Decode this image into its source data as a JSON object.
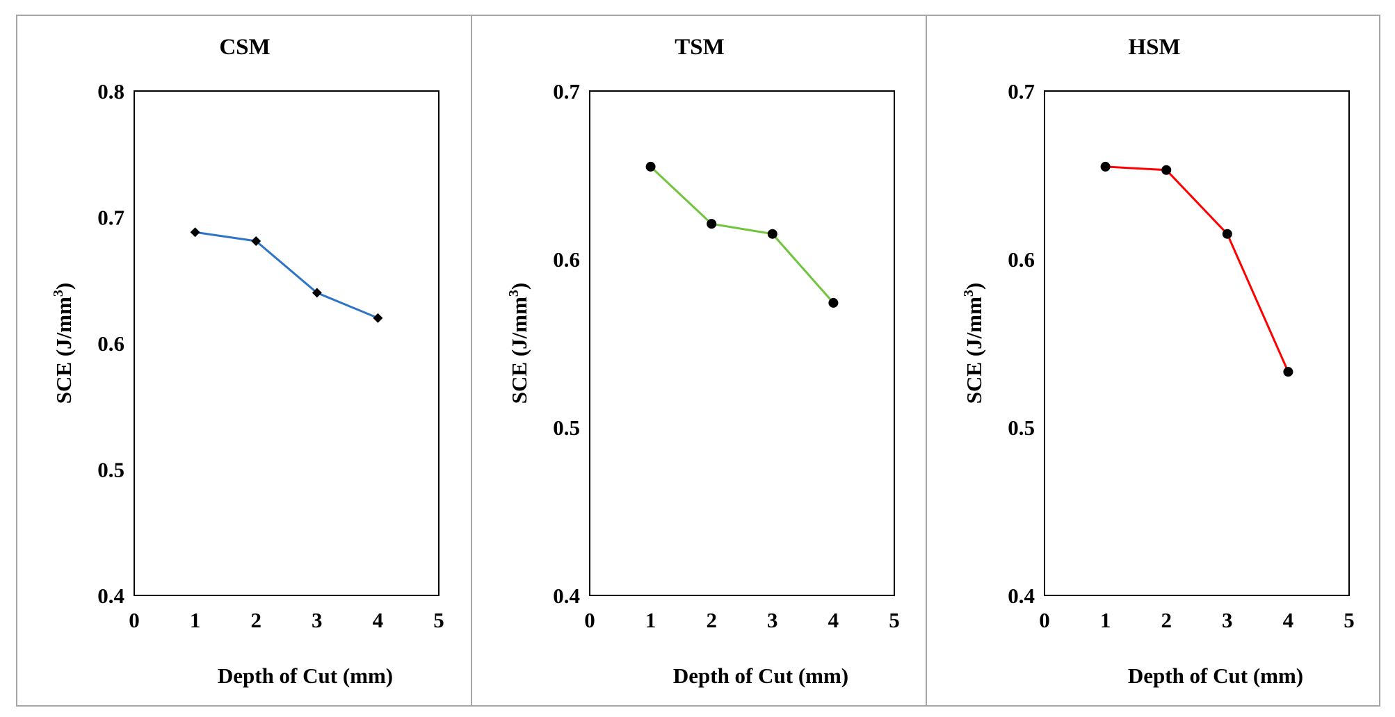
{
  "chart_data": [
    {
      "type": "line",
      "title": "CSM",
      "xlabel": "Depth of Cut (mm)",
      "ylabel": "SCE (J/mm",
      "ylabel_sup": "3",
      "ylabel_close": ")",
      "x": [
        1,
        2,
        3,
        4
      ],
      "values": [
        0.688,
        0.681,
        0.64,
        0.62
      ],
      "xlim": [
        0,
        5
      ],
      "ylim": [
        0.4,
        0.8
      ],
      "xticks": [
        "0",
        "1",
        "2",
        "3",
        "4",
        "5"
      ],
      "yticks": [
        "0.4",
        "0.5",
        "0.6",
        "0.7",
        "0.8"
      ],
      "line_color": "#2e75c6",
      "marker": "diamond",
      "grid": false
    },
    {
      "type": "line",
      "title": "TSM",
      "xlabel": "Depth of Cut (mm)",
      "ylabel": "SCE (J/mm",
      "ylabel_sup": "3",
      "ylabel_close": ")",
      "x": [
        1,
        2,
        3,
        4
      ],
      "values": [
        0.655,
        0.621,
        0.615,
        0.574
      ],
      "xlim": [
        0,
        5
      ],
      "ylim": [
        0.4,
        0.7
      ],
      "xticks": [
        "0",
        "1",
        "2",
        "3",
        "4",
        "5"
      ],
      "yticks": [
        "0.4",
        "0.5",
        "0.6",
        "0.7"
      ],
      "line_color": "#70c43e",
      "marker": "circle",
      "grid": false
    },
    {
      "type": "line",
      "title": "HSM",
      "xlabel": "Depth of Cut (mm)",
      "ylabel": "SCE (J/mm",
      "ylabel_sup": "3",
      "ylabel_close": ")",
      "x": [
        1,
        2,
        3,
        4
      ],
      "values": [
        0.655,
        0.653,
        0.615,
        0.533
      ],
      "xlim": [
        0,
        5
      ],
      "ylim": [
        0.4,
        0.7
      ],
      "xticks": [
        "0",
        "1",
        "2",
        "3",
        "4",
        "5"
      ],
      "yticks": [
        "0.4",
        "0.5",
        "0.6",
        "0.7"
      ],
      "line_color": "#ff0000",
      "marker": "circle",
      "grid": false
    }
  ]
}
